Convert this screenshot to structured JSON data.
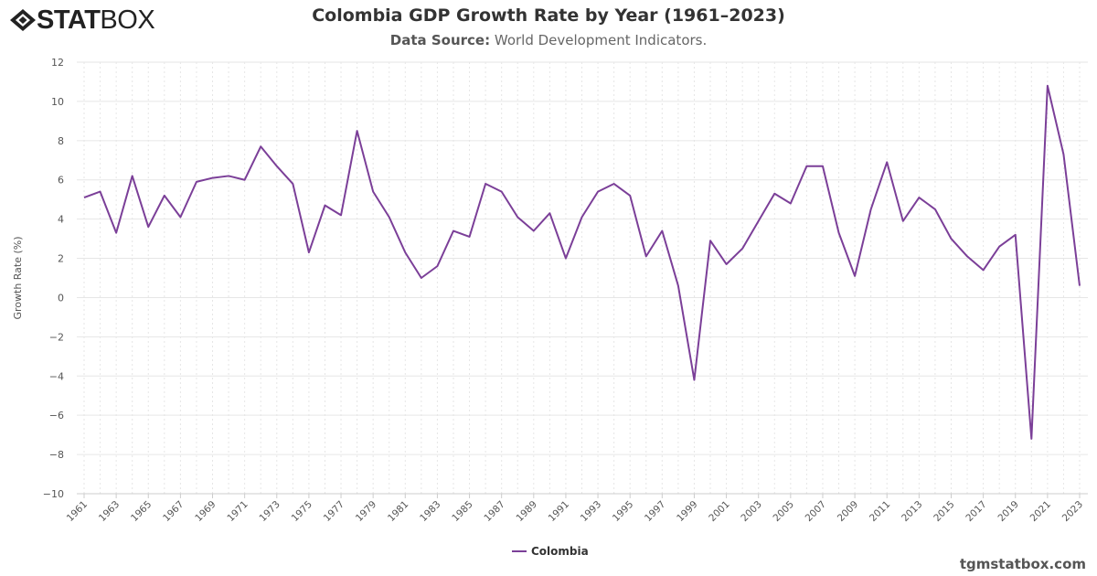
{
  "logo": {
    "text_bold": "STAT",
    "text_light": "BOX"
  },
  "header": {
    "title": "Colombia GDP Growth Rate by Year (1961–2023)",
    "source_label": "Data Source:",
    "source_value": "World Development Indicators."
  },
  "watermark": "tgmstatbox.com",
  "chart_data": {
    "type": "line",
    "title": "Colombia GDP Growth Rate by Year (1961–2023)",
    "ylabel": "Growth Rate (%)",
    "xlabel": "",
    "ylim": [
      -10,
      12
    ],
    "yticks": [
      -10,
      -8,
      -6,
      -4,
      -2,
      0,
      2,
      4,
      6,
      8,
      10,
      12
    ],
    "grid": true,
    "legend": "bottom-center",
    "color": "#7b3f98",
    "x": [
      1961,
      1962,
      1963,
      1964,
      1965,
      1966,
      1967,
      1968,
      1969,
      1970,
      1971,
      1972,
      1973,
      1974,
      1975,
      1976,
      1977,
      1978,
      1979,
      1980,
      1981,
      1982,
      1983,
      1984,
      1985,
      1986,
      1987,
      1988,
      1989,
      1990,
      1991,
      1992,
      1993,
      1994,
      1995,
      1996,
      1997,
      1998,
      1999,
      2000,
      2001,
      2002,
      2003,
      2004,
      2005,
      2006,
      2007,
      2008,
      2009,
      2010,
      2011,
      2012,
      2013,
      2014,
      2015,
      2016,
      2017,
      2018,
      2019,
      2020,
      2021,
      2022,
      2023
    ],
    "series": [
      {
        "name": "Colombia",
        "values": [
          5.1,
          5.4,
          3.3,
          6.2,
          3.6,
          5.2,
          4.1,
          5.9,
          6.1,
          6.2,
          6.0,
          7.7,
          6.7,
          5.8,
          2.3,
          4.7,
          4.2,
          8.5,
          5.4,
          4.1,
          2.3,
          1.0,
          1.6,
          3.4,
          3.1,
          5.8,
          5.4,
          4.1,
          3.4,
          4.3,
          2.0,
          4.1,
          5.4,
          5.8,
          5.2,
          2.1,
          3.4,
          0.6,
          -4.2,
          2.9,
          1.7,
          2.5,
          3.9,
          5.3,
          4.8,
          6.7,
          6.7,
          3.3,
          1.1,
          4.5,
          6.9,
          3.9,
          5.1,
          4.5,
          3.0,
          2.1,
          1.4,
          2.6,
          3.2,
          -7.2,
          10.8,
          7.3,
          0.6
        ]
      }
    ]
  }
}
